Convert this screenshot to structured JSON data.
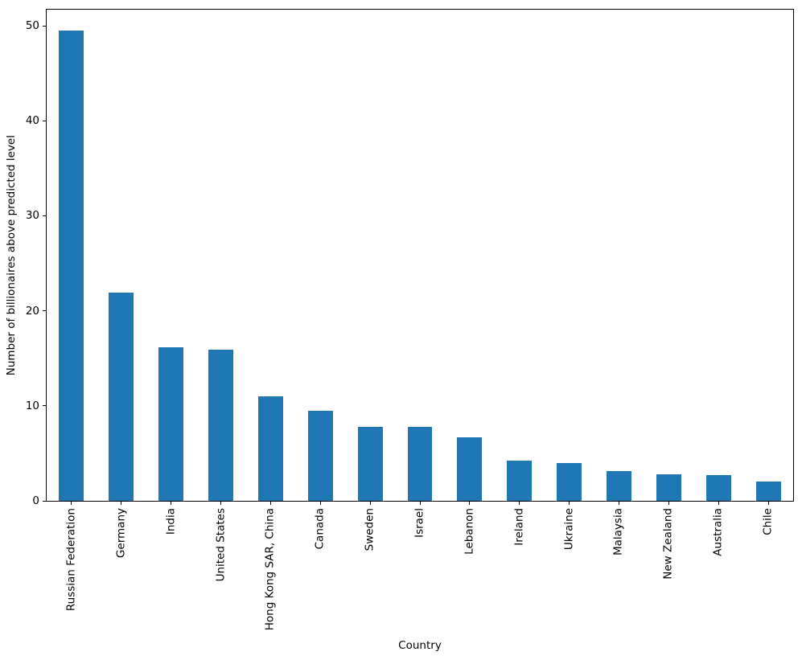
{
  "figure": {
    "background_color": "#ffffff",
    "spine_color": "#000000",
    "text_color": "#000000"
  },
  "chart_data": {
    "type": "bar",
    "title": "",
    "xlabel": "Country",
    "ylabel": "Number of billionaires above predicted level",
    "categories": [
      "Russian Federation",
      "Germany",
      "India",
      "United States",
      "Hong Kong SAR, China",
      "Canada",
      "Sweden",
      "Israel",
      "Lebanon",
      "Ireland",
      "Ukraine",
      "Malaysia",
      "New Zealand",
      "Australia",
      "Chile"
    ],
    "values": [
      49.5,
      21.9,
      16.2,
      15.9,
      11.0,
      9.5,
      7.8,
      7.75,
      6.65,
      4.25,
      4.0,
      3.1,
      2.8,
      2.75,
      2.0
    ],
    "yticks": [
      0,
      10,
      20,
      30,
      40,
      50
    ],
    "ylim": [
      0,
      51.7
    ],
    "bar_color": "#1f77b4",
    "bar_width_fraction": 0.5,
    "grid": false,
    "legend": null,
    "x_tick_rotation_degrees": 90
  }
}
